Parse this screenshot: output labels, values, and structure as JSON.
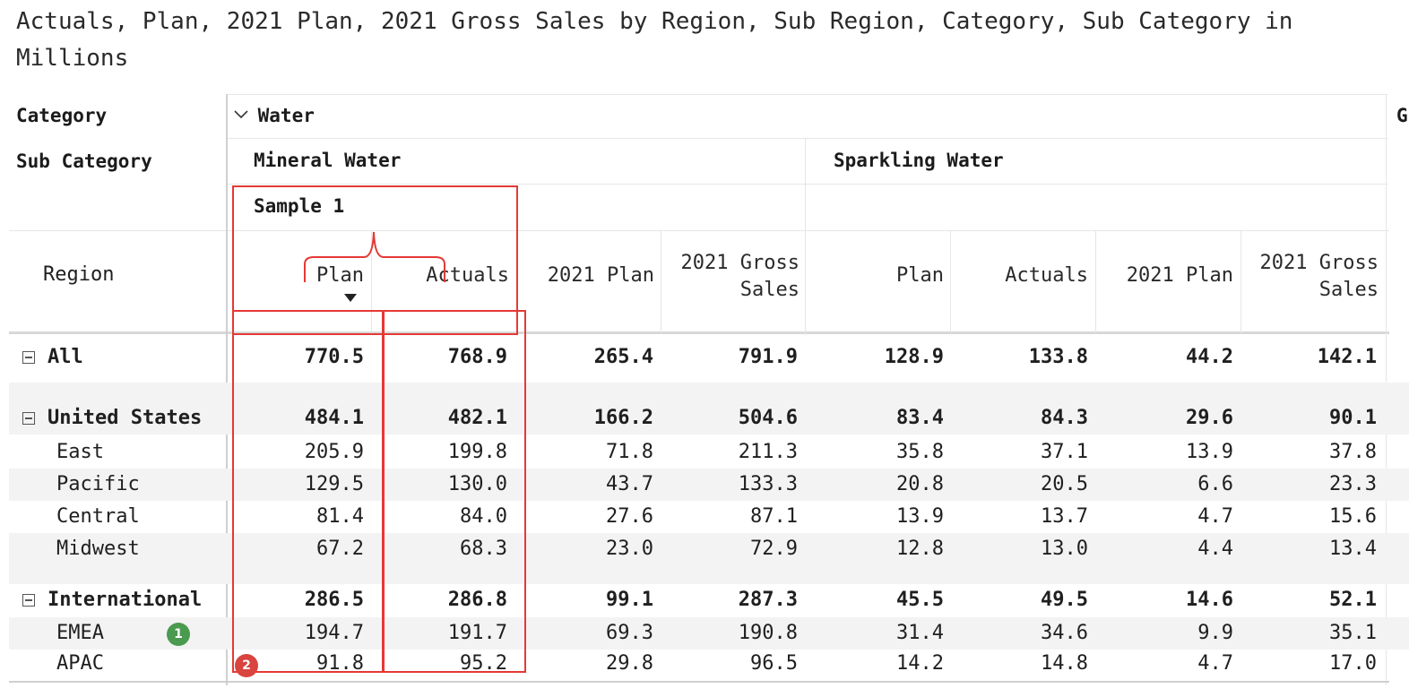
{
  "title": "Actuals, Plan, 2021 Plan, 2021 Gross Sales by Region, Sub Region, Category, Sub Category in Millions",
  "headers": {
    "category_label": "Category",
    "subcategory_label": "Sub Category",
    "region_label": "Region",
    "category_value": "Water",
    "next_category_partial": "G",
    "subcategory_1": "Mineral Water",
    "subcategory_2": "Sparkling Water",
    "sample_label": "Sample 1",
    "columns": [
      "Plan",
      "Actuals",
      "2021 Plan",
      "2021 Gross Sales",
      "Plan",
      "Actuals",
      "2021 Plan",
      "2021 Gross Sales"
    ]
  },
  "rows": [
    {
      "label": "All",
      "bold": true,
      "expandable": true,
      "values": [
        "770.5",
        "768.9",
        "265.4",
        "791.9",
        "128.9",
        "133.8",
        "44.2",
        "142.1"
      ]
    },
    {
      "label": "United States",
      "bold": true,
      "expandable": true,
      "values": [
        "484.1",
        "482.1",
        "166.2",
        "504.6",
        "83.4",
        "84.3",
        "29.6",
        "90.1"
      ]
    },
    {
      "label": "East",
      "bold": false,
      "values": [
        "205.9",
        "199.8",
        "71.8",
        "211.3",
        "35.8",
        "37.1",
        "13.9",
        "37.8"
      ]
    },
    {
      "label": "Pacific",
      "bold": false,
      "values": [
        "129.5",
        "130.0",
        "43.7",
        "133.3",
        "20.8",
        "20.5",
        "6.6",
        "23.3"
      ]
    },
    {
      "label": "Central",
      "bold": false,
      "values": [
        "81.4",
        "84.0",
        "27.6",
        "87.1",
        "13.9",
        "13.7",
        "4.7",
        "15.6"
      ]
    },
    {
      "label": "Midwest",
      "bold": false,
      "values": [
        "67.2",
        "68.3",
        "23.0",
        "72.9",
        "12.8",
        "13.0",
        "4.4",
        "13.4"
      ]
    },
    {
      "label": "International",
      "bold": true,
      "expandable": true,
      "values": [
        "286.5",
        "286.8",
        "99.1",
        "287.3",
        "45.5",
        "49.5",
        "14.6",
        "52.1"
      ]
    },
    {
      "label": "EMEA",
      "bold": false,
      "values": [
        "194.7",
        "191.7",
        "69.3",
        "190.8",
        "31.4",
        "34.6",
        "9.9",
        "35.1"
      ]
    },
    {
      "label": "APAC",
      "bold": false,
      "values": [
        "91.8",
        "95.2",
        "29.8",
        "96.5",
        "14.2",
        "14.8",
        "4.7",
        "17.0"
      ]
    }
  ],
  "annotations": {
    "badge_1": "1",
    "badge_2": "2"
  },
  "colors": {
    "annotation_red": "#e53935",
    "badge_green": "#4a9a4f",
    "badge_red": "#d9443f",
    "band_gray": "#f3f3f3"
  }
}
